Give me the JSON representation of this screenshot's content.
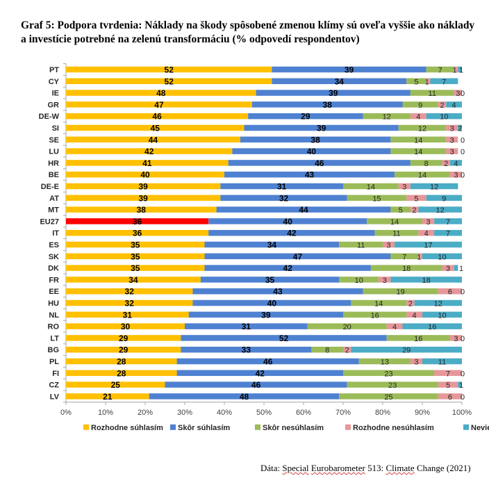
{
  "title": "Graf 5: Podpora tvrdenia: Náklady na škody spôsobené zmenou klímy sú oveľa vyššie ako náklady a investície potrebné na zelenú transformáciu (% odpovedí respondentov)",
  "source": {
    "prefix": "Dáta:",
    "word1": "Special",
    "word2": "Eurobarometer",
    "middle": "513:",
    "word3": "Climate",
    "suffix": "Change (2021)"
  },
  "chart_data": {
    "type": "bar",
    "orientation": "horizontal",
    "stacked": true,
    "title": "Graf 5: Podpora tvrdenia: Náklady na škody spôsobené zmenou klímy sú oveľa vyššie ako náklady a investície potrebné na zelenú transformáciu (% odpovedí respondentov)",
    "xlabel": "",
    "ylabel": "",
    "xlim": [
      0,
      100
    ],
    "x_ticks": [
      "0%",
      "10%",
      "20%",
      "30%",
      "40%",
      "50%",
      "60%",
      "70%",
      "80%",
      "90%",
      "100%"
    ],
    "legend_position": "bottom",
    "grid": false,
    "highlight_category": "EU27",
    "highlight_color": "#ff0000",
    "categories": [
      "PT",
      "CY",
      "IE",
      "GR",
      "DE-W",
      "SI",
      "SE",
      "LU",
      "HR",
      "BE",
      "DE-E",
      "AT",
      "MT",
      "EU27",
      "IT",
      "ES",
      "SK",
      "DK",
      "FR",
      "EE",
      "HU",
      "NL",
      "RO",
      "LT",
      "BG",
      "PL",
      "FI",
      "CZ",
      "LV"
    ],
    "series": [
      {
        "name": "Rozhodne súhlasím",
        "color": "#ffc000",
        "values": [
          52,
          52,
          48,
          47,
          46,
          45,
          44,
          42,
          41,
          40,
          39,
          39,
          38,
          36,
          36,
          35,
          35,
          35,
          34,
          32,
          32,
          31,
          30,
          29,
          29,
          28,
          28,
          25,
          21
        ]
      },
      {
        "name": "Skôr súhlasím",
        "color": "#4f81d1",
        "values": [
          39,
          34,
          39,
          38,
          29,
          39,
          38,
          40,
          46,
          43,
          31,
          32,
          44,
          40,
          42,
          34,
          47,
          42,
          35,
          43,
          40,
          39,
          31,
          52,
          33,
          46,
          42,
          46,
          48
        ]
      },
      {
        "name": "Skôr nesúhlasím",
        "color": "#9bbb59",
        "values": [
          7,
          5,
          11,
          9,
          12,
          12,
          14,
          14,
          8,
          14,
          14,
          15,
          5,
          14,
          11,
          11,
          7,
          18,
          10,
          19,
          14,
          16,
          20,
          16,
          8,
          13,
          23,
          23,
          25
        ]
      },
      {
        "name": "Rozhodne nesúhlasím",
        "color": "#e6979a",
        "values": [
          1,
          1,
          3,
          2,
          4,
          3,
          3,
          3,
          2,
          3,
          3,
          5,
          2,
          3,
          4,
          3,
          1,
          3,
          3,
          6,
          2,
          4,
          4,
          3,
          2,
          3,
          7,
          5,
          6
        ]
      },
      {
        "name": "Nevie",
        "color": "#4bacc6",
        "values": [
          1,
          7,
          0,
          4,
          10,
          2,
          0,
          0,
          4,
          0,
          12,
          9,
          12,
          7,
          7,
          17,
          10,
          1,
          18,
          0,
          12,
          10,
          16,
          0,
          29,
          11,
          0,
          1,
          0
        ]
      }
    ]
  }
}
